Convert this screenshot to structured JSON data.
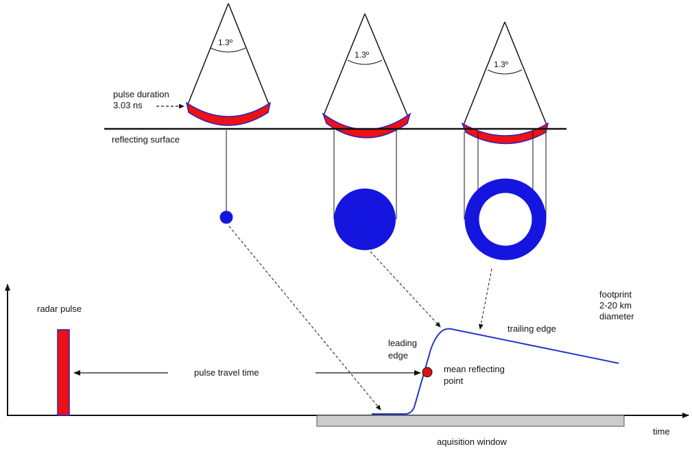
{
  "labels": {
    "angle": "1.3º",
    "pulse_duration_line1": "pulse duration",
    "pulse_duration_line2": "3.03 ns",
    "reflecting_surface": "reflecting surface",
    "radar_pulse": "radar pulse",
    "pulse_travel_time": "pulse travel time",
    "leading_edge_line1": "leading",
    "leading_edge_line2": "edge",
    "mean_reflecting_line1": "mean reflecting",
    "mean_reflecting_line2": "point",
    "trailing_edge": "trailing edge",
    "footprint_line1": "footprint",
    "footprint_line2": "2-20 km",
    "footprint_line3": "diameter",
    "acquisition_window": "aquisition window",
    "time_axis": "time"
  },
  "colors": {
    "pulse_band": "#ee1111",
    "band_outline": "#2222cc",
    "footprint": "#1515e0",
    "waveform": "#2233cc",
    "mean_point": "#dd1111",
    "window_fill": "#cccccc",
    "line": "#111111"
  }
}
